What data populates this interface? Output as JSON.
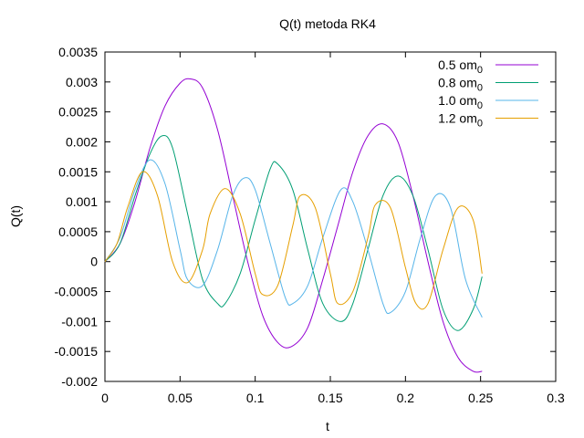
{
  "chart_data": {
    "type": "line",
    "title": "Q(t) metoda RK4",
    "xlabel": "t",
    "ylabel": "Q(t)",
    "xlim": [
      0,
      0.3
    ],
    "ylim": [
      -0.002,
      0.0035
    ],
    "xticks": [
      0,
      0.05,
      0.1,
      0.15,
      0.2,
      0.25,
      0.3
    ],
    "xtick_labels": [
      "0",
      "0.05",
      "0.1",
      "0.15",
      "0.2",
      "0.25",
      "0.3"
    ],
    "yticks": [
      -0.002,
      -0.0015,
      -0.001,
      -0.0005,
      0,
      0.0005,
      0.001,
      0.0015,
      0.002,
      0.0025,
      0.003,
      0.0035
    ],
    "ytick_labels": [
      "-0.002",
      "-0.0015",
      "-0.001",
      "-0.0005",
      "0",
      "0.0005",
      "0.001",
      "0.0015",
      "0.002",
      "0.0025",
      "0.003",
      "0.0035"
    ],
    "grid": false,
    "legend_position": "top-right",
    "series": [
      {
        "name": "0.5 om",
        "subscript": "0",
        "color": "#9400d3",
        "x": [
          0,
          0.01,
          0.02,
          0.03,
          0.04,
          0.05,
          0.057,
          0.065,
          0.075,
          0.085,
          0.095,
          0.105,
          0.115,
          0.124,
          0.135,
          0.145,
          0.155,
          0.165,
          0.175,
          0.185,
          0.195,
          0.205,
          0.215,
          0.225,
          0.235,
          0.245,
          0.251
        ],
        "y": [
          0,
          0.0003,
          0.001,
          0.0019,
          0.0026,
          0.00298,
          0.00305,
          0.0029,
          0.0022,
          0.0011,
          0.0,
          -0.0009,
          -0.00135,
          -0.00142,
          -0.0011,
          -0.0003,
          0.0006,
          0.0015,
          0.0021,
          0.0023,
          0.002,
          0.0011,
          0.0,
          -0.001,
          -0.0016,
          -0.00183,
          -0.00183
        ]
      },
      {
        "name": "0.8 om",
        "subscript": "0",
        "color": "#009e73",
        "x": [
          0,
          0.01,
          0.02,
          0.03,
          0.038,
          0.045,
          0.055,
          0.065,
          0.075,
          0.08,
          0.09,
          0.1,
          0.11,
          0.115,
          0.125,
          0.135,
          0.145,
          0.157,
          0.165,
          0.175,
          0.185,
          0.195,
          0.205,
          0.215,
          0.225,
          0.235,
          0.245,
          0.251
        ],
        "y": [
          0,
          0.0003,
          0.0011,
          0.0018,
          0.0021,
          0.0019,
          0.0008,
          -0.0003,
          -0.0007,
          -0.0007,
          -0.0002,
          0.0007,
          0.00155,
          0.00163,
          0.0012,
          0.0002,
          -0.0007,
          -0.001,
          -0.0007,
          0.0002,
          0.0011,
          0.00143,
          0.0011,
          0.0002,
          -0.0008,
          -0.00115,
          -0.0008,
          -0.00025
        ]
      },
      {
        "name": "1.0 om",
        "subscript": "0",
        "color": "#56b4e9",
        "x": [
          0,
          0.01,
          0.02,
          0.03,
          0.04,
          0.05,
          0.055,
          0.065,
          0.075,
          0.085,
          0.093,
          0.1,
          0.11,
          0.12,
          0.125,
          0.135,
          0.145,
          0.157,
          0.165,
          0.175,
          0.185,
          0.19,
          0.2,
          0.21,
          0.22,
          0.23,
          0.24,
          0.251
        ],
        "y": [
          0,
          0.0004,
          0.0012,
          0.0017,
          0.0013,
          0.0002,
          -0.0003,
          -0.0004,
          0.0002,
          0.0011,
          0.0014,
          0.0012,
          0.0003,
          -0.0006,
          -0.0007,
          -0.0004,
          0.0004,
          0.0012,
          0.001,
          0.0002,
          -0.0007,
          -0.00085,
          -0.0005,
          0.0004,
          0.0011,
          0.0009,
          -0.0003,
          -0.00093
        ]
      },
      {
        "name": "1.2 om",
        "subscript": "0",
        "color": "#e69f00",
        "x": [
          0,
          0.008,
          0.015,
          0.025,
          0.035,
          0.045,
          0.055,
          0.065,
          0.07,
          0.08,
          0.09,
          0.1,
          0.105,
          0.115,
          0.125,
          0.13,
          0.14,
          0.15,
          0.155,
          0.165,
          0.175,
          0.18,
          0.19,
          0.2,
          0.207,
          0.215,
          0.225,
          0.235,
          0.245,
          0.251
        ],
        "y": [
          0,
          0.0003,
          0.0009,
          0.0015,
          0.0011,
          0.0,
          -0.00035,
          0.0002,
          0.0008,
          0.00122,
          0.0008,
          -0.0002,
          -0.00055,
          -0.0004,
          0.0006,
          0.0011,
          0.0009,
          -0.0002,
          -0.0007,
          -0.0005,
          0.0004,
          0.00095,
          0.0009,
          -0.0001,
          -0.0007,
          -0.0007,
          0.0002,
          0.0009,
          0.0007,
          -0.0002
        ]
      }
    ]
  }
}
